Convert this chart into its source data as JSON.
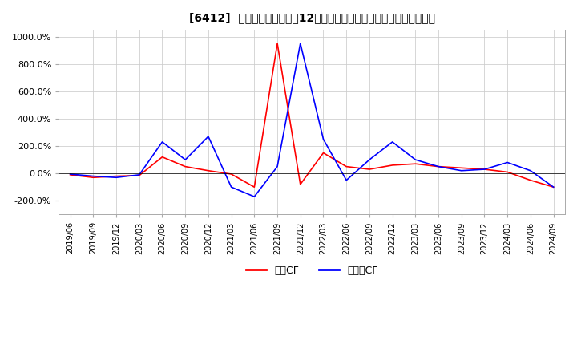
{
  "title": "[6412]  キャッシュフローの12か月移動合計の対前年同期増減率の推移",
  "ylim": [
    -300,
    1050
  ],
  "yticks": [
    -200,
    0,
    200,
    400,
    600,
    800,
    1000
  ],
  "ytick_labels": [
    "-200.0%",
    "0.0%",
    "200.0%",
    "400.0%",
    "600.0%",
    "800.0%",
    "1000.0%"
  ],
  "legend_labels": [
    "営業CF",
    "フリーCF"
  ],
  "line_colors": [
    "#ff0000",
    "#0000ff"
  ],
  "background_color": "#ffffff",
  "grid_color": "#cccccc",
  "dates": [
    "2019/06",
    "2019/09",
    "2019/12",
    "2020/03",
    "2020/06",
    "2020/09",
    "2020/12",
    "2021/03",
    "2021/06",
    "2021/09",
    "2021/12",
    "2022/03",
    "2022/06",
    "2022/09",
    "2022/12",
    "2023/03",
    "2023/06",
    "2023/09",
    "2023/12",
    "2024/03",
    "2024/06",
    "2024/09"
  ],
  "operating_cf": [
    -10,
    -30,
    -20,
    -15,
    120,
    50,
    20,
    -5,
    -100,
    950,
    -80,
    150,
    50,
    30,
    60,
    70,
    50,
    40,
    30,
    10,
    -50,
    -100
  ],
  "free_cf": [
    -5,
    -20,
    -30,
    -10,
    230,
    100,
    270,
    -100,
    -170,
    50,
    950,
    250,
    -50,
    100,
    230,
    100,
    50,
    20,
    30,
    80,
    20,
    -100
  ]
}
